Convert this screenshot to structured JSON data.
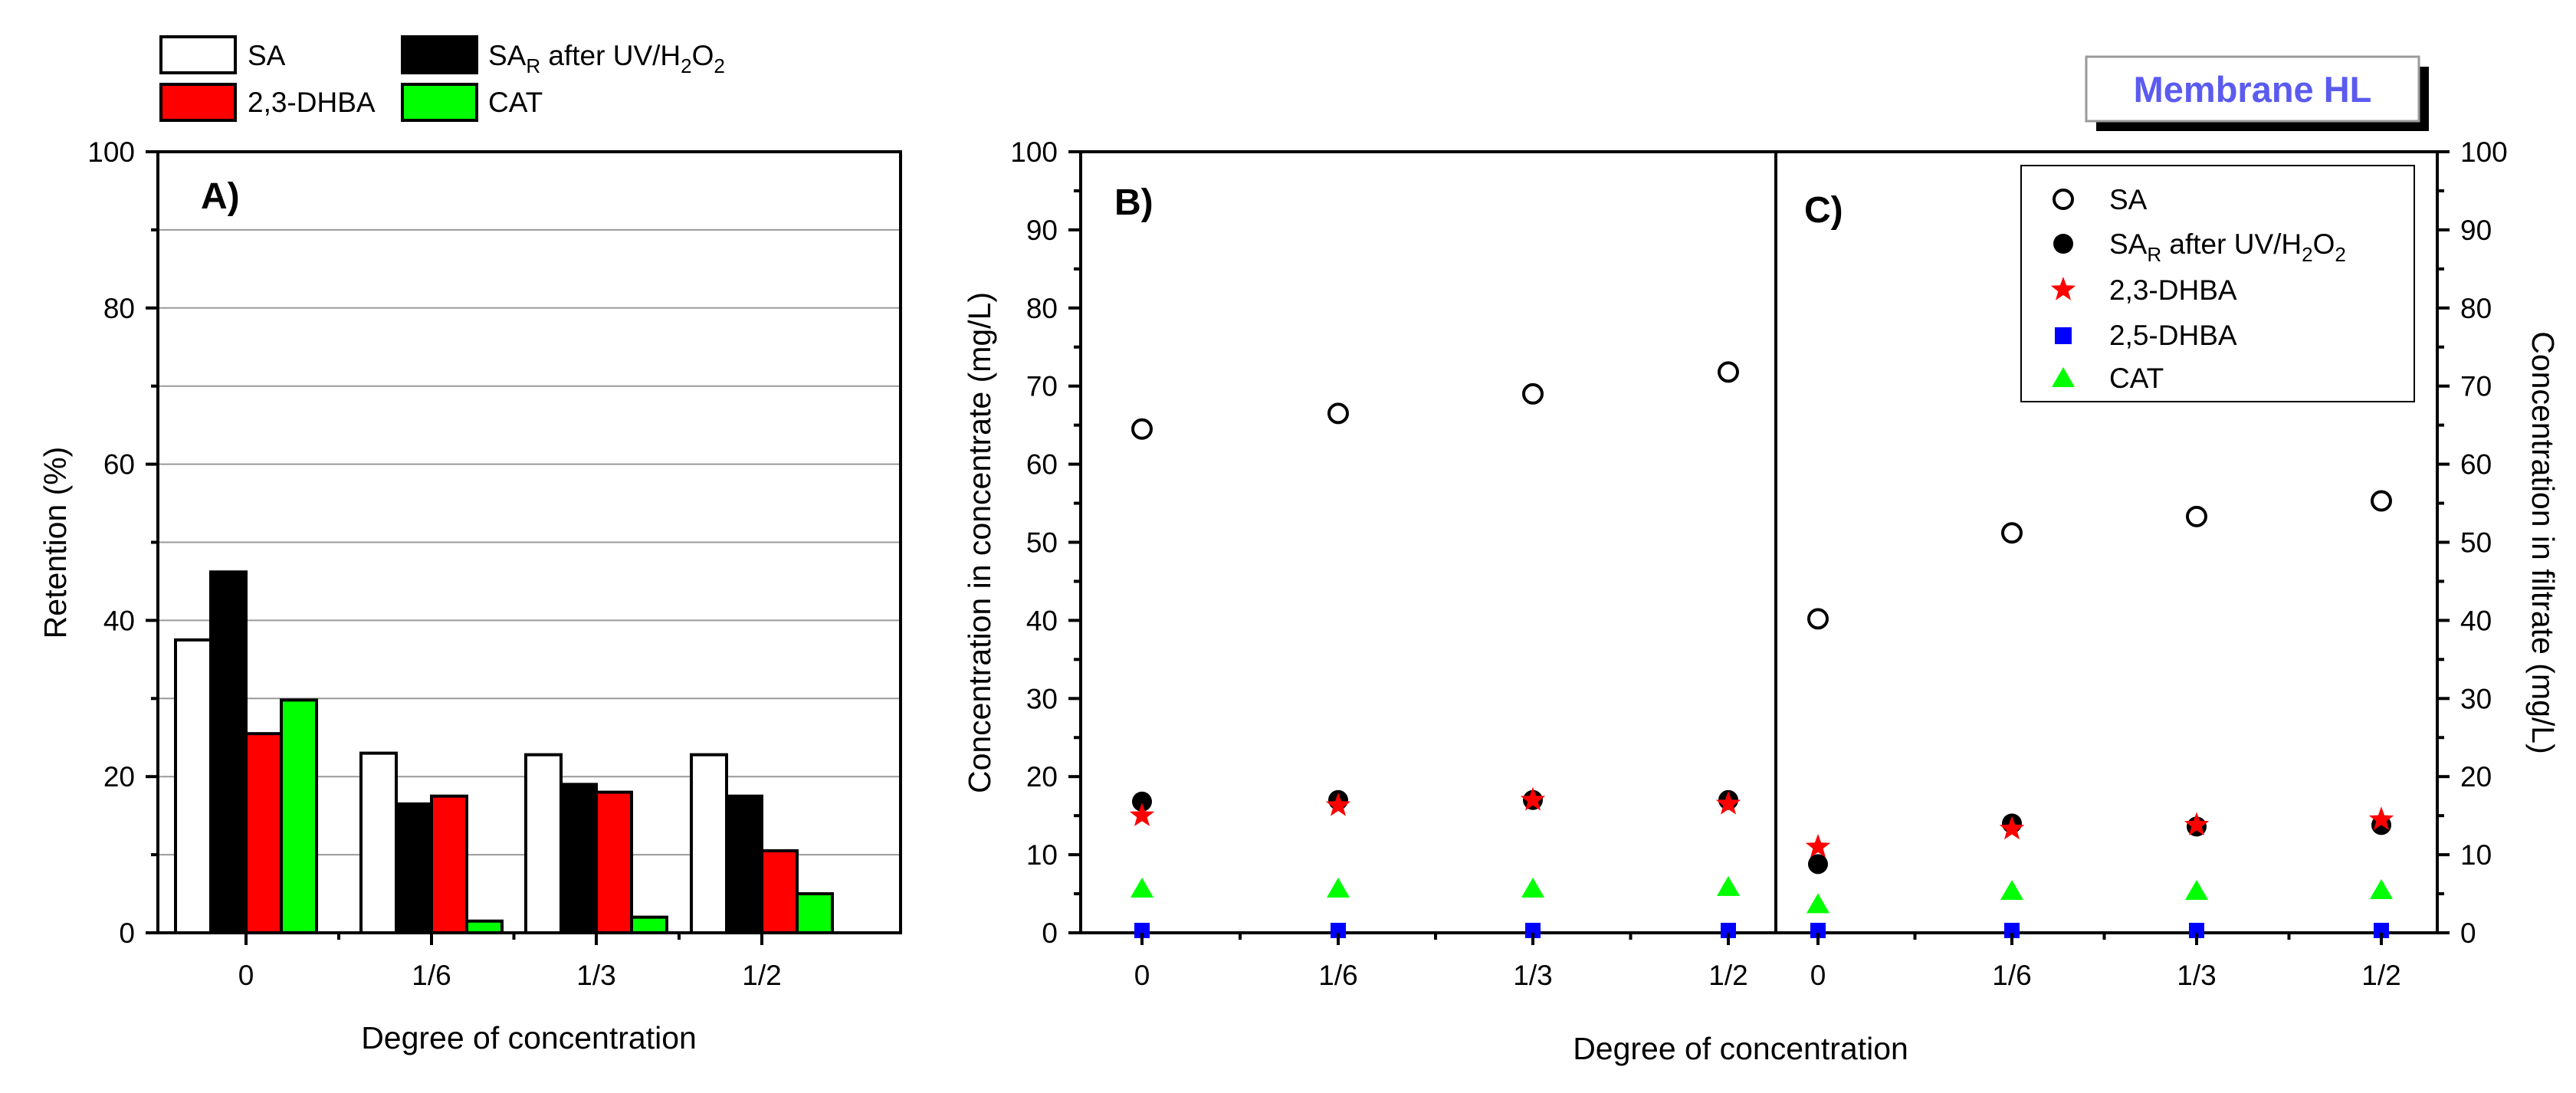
{
  "chart_data": [
    {
      "panel": "A)",
      "type": "bar",
      "xlabel": "Degree of concentration",
      "ylabel": "Retention (%)",
      "ylim": [
        0,
        100
      ],
      "yticks": [
        0,
        20,
        40,
        60,
        80,
        100
      ],
      "categories": [
        "0",
        "1/6",
        "1/3",
        "1/2"
      ],
      "legend_position": "top-left",
      "series": [
        {
          "name": "SA",
          "color": "#ffffff",
          "values": [
            37.5,
            23.0,
            22.8,
            22.8
          ]
        },
        {
          "name": "SA_R after UV/H2O2",
          "color": "#000000",
          "values": [
            46.2,
            16.5,
            19.0,
            17.5
          ]
        },
        {
          "name": "2,3-DHBA",
          "color": "#ff0000",
          "values": [
            25.5,
            17.5,
            18.0,
            10.5
          ]
        },
        {
          "name": "CAT",
          "color": "#00ff00",
          "values": [
            29.8,
            1.5,
            2.0,
            5.0
          ]
        }
      ]
    },
    {
      "panel": "B)",
      "type": "scatter",
      "ylabel": "Concentration in concentrate (mg/L)",
      "ylim": [
        0,
        100
      ],
      "yticks": [
        0,
        10,
        20,
        30,
        40,
        50,
        60,
        70,
        80,
        90,
        100
      ],
      "categories": [
        "0",
        "1/6",
        "1/3",
        "1/2"
      ],
      "series": [
        {
          "name": "SA",
          "marker": "open-circle",
          "color": "#000000",
          "values": [
            64.5,
            66.5,
            69.0,
            71.8
          ]
        },
        {
          "name": "SA_R after UV/H2O2",
          "marker": "filled-circle",
          "color": "#000000",
          "values": [
            16.8,
            17.0,
            17.0,
            17.0
          ]
        },
        {
          "name": "2,3-DHBA",
          "marker": "star",
          "color": "#ff0000",
          "values": [
            15.0,
            16.3,
            17.0,
            16.5
          ]
        },
        {
          "name": "2,5-DHBA",
          "marker": "square",
          "color": "#0000ff",
          "values": [
            0.3,
            0.3,
            0.3,
            0.3
          ]
        },
        {
          "name": "CAT",
          "marker": "triangle",
          "color": "#00ff00",
          "values": [
            5.5,
            5.5,
            5.5,
            5.7
          ]
        }
      ]
    },
    {
      "panel": "C)",
      "type": "scatter",
      "ylabel": "Concentration in filtrate (mg/L)",
      "ylim": [
        0,
        100
      ],
      "yticks": [
        0,
        10,
        20,
        30,
        40,
        50,
        60,
        70,
        80,
        90,
        100
      ],
      "categories": [
        "0",
        "1/6",
        "1/3",
        "1/2"
      ],
      "legend_position": "top-right",
      "series": [
        {
          "name": "SA",
          "marker": "open-circle",
          "color": "#000000",
          "values": [
            40.2,
            51.2,
            53.3,
            55.3
          ]
        },
        {
          "name": "SA_R after UV/H2O2",
          "marker": "filled-circle",
          "color": "#000000",
          "values": [
            8.8,
            14.0,
            13.6,
            13.8
          ]
        },
        {
          "name": "2,3-DHBA",
          "marker": "star",
          "color": "#ff0000",
          "values": [
            11.0,
            13.3,
            13.8,
            14.5
          ]
        },
        {
          "name": "2,5-DHBA",
          "marker": "square",
          "color": "#0000ff",
          "values": [
            0.3,
            0.3,
            0.3,
            0.3
          ]
        },
        {
          "name": "CAT",
          "marker": "triangle",
          "color": "#00ff00",
          "values": [
            3.5,
            5.2,
            5.2,
            5.3
          ]
        }
      ]
    }
  ],
  "shared_xlabel_bc": "Degree of concentration",
  "badge": "Membrane HL",
  "legend_a": {
    "sa": "SA",
    "sar_main": "SA",
    "sar_sub": "R",
    "sar_rest": " after UV/H",
    "h2": "2",
    "o": "O",
    "o2": "2",
    "dhba23": "2,3-DHBA",
    "cat": "CAT"
  },
  "legend_c": {
    "sa": "SA",
    "sar_main": "SA",
    "sar_sub": "R",
    "sar_rest": " after UV/H",
    "h2": "2",
    "o": "O",
    "o2": "2",
    "dhba23": "2,3-DHBA",
    "dhba25": "2,5-DHBA",
    "cat": "CAT"
  }
}
